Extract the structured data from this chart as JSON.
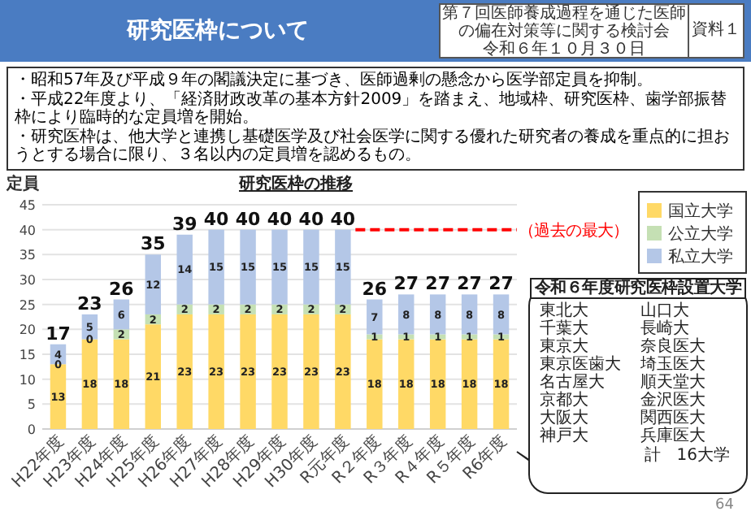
{
  "chart_data": {
    "type": "bar",
    "stacked": true,
    "title": "研究医枠の推移",
    "ylabel": "定員",
    "categories": [
      "H22年度",
      "H23年度",
      "H24年度",
      "H25年度",
      "H26年度",
      "H27年度",
      "H28年度",
      "H29年度",
      "H30年度",
      "R元年度",
      "R２年度",
      "R３年度",
      "R４年度",
      "R５年度",
      "R6年度"
    ],
    "series": [
      {
        "name": "国立大学",
        "color": "#ffd966",
        "values": [
          13,
          18,
          18,
          21,
          23,
          23,
          23,
          23,
          23,
          23,
          18,
          18,
          18,
          18,
          18
        ]
      },
      {
        "name": "公立大学",
        "color": "#c5e0b4",
        "values": [
          0,
          0,
          2,
          2,
          2,
          2,
          2,
          2,
          2,
          2,
          1,
          1,
          1,
          1,
          1
        ]
      },
      {
        "name": "私立大学",
        "color": "#b4c7e7",
        "values": [
          4,
          5,
          6,
          12,
          14,
          15,
          15,
          15,
          15,
          15,
          7,
          8,
          8,
          8,
          8
        ]
      }
    ],
    "ylim": [
      0,
      45
    ],
    "yticks": [
      0,
      5,
      10,
      15,
      20,
      25,
      30,
      35,
      40,
      45
    ],
    "grid": "y",
    "legend": "top right",
    "data_labels": true,
    "totals": [
      "17",
      "23",
      "26",
      "35",
      "39",
      "40",
      "40",
      "40",
      "40",
      "40",
      "26",
      "27",
      "27",
      "27",
      "27"
    ],
    "ref_lines": [
      {
        "axis": "y",
        "value": 40,
        "label": "（過去の最大）",
        "color": "#ff0000",
        "line_style": "dashed"
      }
    ],
    "annotations": [
      "研究医枠について",
      "第７回医師養成過程を通じた医師の偏在対策等に関する検討会",
      "令和６年１０月３０日",
      "資料１",
      "・昭和57年及び平成９年の閣議決定に基づき、医師過剰の懸念から医学部定員を抑制。",
      "・平成22年度より、「経済財政改革の基本方針2009」を踏まえ、地域枠、研究医枠、歯学部振替枠により臨時的な定員増を開始。",
      "・研究医枠は、他大学と連携し基礎医学及び社会医学に関する優れた研究者の養成を重点的に担おうとする場合に限り、３名以内の定員増を認めるもの。",
      "令和６年度研究医枠設置大学",
      "東北大",
      "千葉大",
      "東京大",
      "東京医歯大",
      "名古屋大",
      "京都大",
      "大阪大",
      "神戸大",
      "山口大",
      "長崎大",
      "奈良医大",
      "埼玉医大",
      "順天堂大",
      "金沢医大",
      "関西医大",
      "兵庫医大",
      "計　16大学",
      "64"
    ]
  }
}
